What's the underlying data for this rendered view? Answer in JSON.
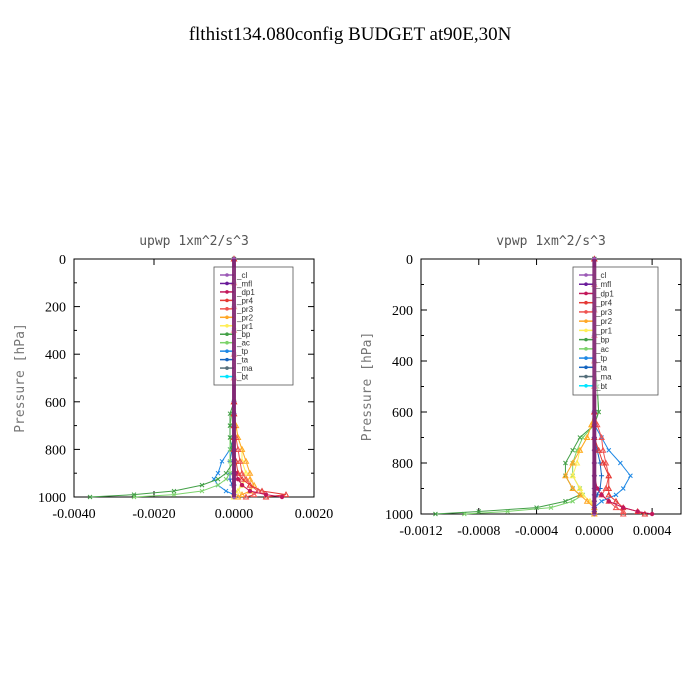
{
  "figure_title": "flthist134.080config  BUDGET at90E,30N",
  "colors": {
    "_cl": "#9b59b6",
    "_mfl": "#6a1b9a",
    "_dp1": "#c2185b",
    "_pr4": "#e53935",
    "_pr3": "#ef5350",
    "_pr2": "#ffa726",
    "_pr1": "#ffee58",
    "_bp": "#43a047",
    "_ac": "#7cd36b",
    "_tp": "#1e88e5",
    "_ta": "#1565c0",
    "_ma": "#546e7a",
    "_bt": "#00e5ff"
  },
  "chart_data": [
    {
      "type": "line",
      "title": "upwp  1xm^2/s^3",
      "ylabel": "Pressure [hPa]",
      "xlabel": "",
      "xlim": [
        -0.004,
        0.002
      ],
      "ylim": [
        1000,
        0
      ],
      "xticks": [
        "-0.0040",
        "-0.0020",
        "0.0000",
        "0.0020"
      ],
      "yticks": [
        "0",
        "200",
        "400",
        "600",
        "800",
        "1000"
      ],
      "legend_position": "top-right",
      "levels": [
        0,
        100,
        200,
        300,
        400,
        500,
        600,
        650,
        700,
        750,
        800,
        850,
        900,
        925,
        950,
        975,
        990,
        1000
      ],
      "series": [
        {
          "name": "_cl",
          "values": [
            0,
            0,
            0,
            0,
            0,
            0,
            0,
            0,
            0,
            0,
            0,
            0,
            0,
            0,
            0,
            0,
            0,
            0
          ]
        },
        {
          "name": "_mfl",
          "values": [
            0,
            0,
            0,
            0,
            0,
            0,
            0,
            0,
            0,
            0,
            0,
            0,
            0,
            0,
            0,
            0,
            0,
            0
          ]
        },
        {
          "name": "_dp1",
          "values": [
            0,
            0,
            0,
            0,
            0,
            0,
            0,
            0,
            0,
            0,
            0,
            0,
            5e-05,
            0.0001,
            0.0002,
            0.0004,
            0.0008,
            0.0012
          ]
        },
        {
          "name": "_pr4",
          "values": [
            0,
            0,
            0,
            0,
            0,
            0,
            0,
            0,
            0,
            0,
            0,
            5e-05,
            0.0001,
            0.0002,
            0.0004,
            0.0007,
            0.0013,
            0.0008
          ]
        },
        {
          "name": "_pr3",
          "values": [
            0,
            0,
            0,
            0,
            0,
            0,
            0,
            0,
            0,
            5e-05,
            0.0001,
            0.00015,
            0.0002,
            0.0003,
            0.0004,
            0.0006,
            0.0005,
            0.0003
          ]
        },
        {
          "name": "_pr2",
          "values": [
            0,
            0,
            0,
            0,
            0,
            0,
            0,
            0,
            5e-05,
            0.0001,
            0.0002,
            0.0003,
            0.0004,
            0.0004,
            0.0005,
            0.0004,
            0.0002,
            0.0001
          ]
        },
        {
          "name": "_pr1",
          "values": [
            0,
            0,
            0,
            0,
            0,
            0,
            0,
            0,
            5e-05,
            0.0001,
            0.0002,
            0.0002,
            0.0003,
            0.0003,
            0.0002,
            0.0001,
            0,
            0
          ]
        },
        {
          "name": "_bp",
          "values": [
            0,
            0,
            0,
            0,
            0,
            0,
            0,
            -0.0001,
            -0.0001,
            -0.0001,
            -5e-05,
            0,
            -0.0002,
            -0.0004,
            -0.0008,
            -0.0015,
            -0.0025,
            -0.0036
          ]
        },
        {
          "name": "_ac",
          "values": [
            0,
            0,
            0,
            0,
            0,
            0,
            0,
            -5e-05,
            -0.0001,
            -0.0001,
            -0.0001,
            -0.0001,
            -0.0001,
            -0.0002,
            -0.0004,
            -0.0008,
            -0.0015,
            -0.0025
          ]
        },
        {
          "name": "_tp",
          "values": [
            0,
            0,
            0,
            0,
            0,
            0,
            0,
            0,
            0,
            0,
            -0.0001,
            -0.0003,
            -0.0004,
            -0.0005,
            -0.0004,
            -0.0002,
            0,
            0
          ]
        },
        {
          "name": "_ta",
          "values": [
            0,
            0,
            0,
            0,
            0,
            0,
            0,
            0,
            0,
            0,
            -5e-05,
            -0.0001,
            -0.0001,
            -0.0001,
            -5e-05,
            0,
            0,
            0
          ]
        },
        {
          "name": "_ma",
          "values": [
            0,
            0,
            0,
            0,
            0,
            0,
            0,
            0,
            0,
            0,
            0,
            0,
            0,
            0,
            0,
            0,
            0,
            0
          ]
        },
        {
          "name": "_bt",
          "values": [
            0,
            0,
            0,
            0,
            0,
            0,
            0,
            0,
            0,
            0,
            0,
            0,
            0,
            0,
            0,
            0,
            0,
            0
          ]
        }
      ]
    },
    {
      "type": "line",
      "title": "vpwp  1xm^2/s^3",
      "ylabel": "Pressure [hPa]",
      "xlabel": "",
      "xlim": [
        -0.0012,
        0.0006
      ],
      "ylim": [
        1000,
        0
      ],
      "xticks": [
        "-0.0012",
        "-0.0008",
        "-0.0004",
        "0.0000",
        "0.0004"
      ],
      "yticks": [
        "0",
        "200",
        "400",
        "600",
        "800",
        "1000"
      ],
      "legend_position": "top-right",
      "levels": [
        0,
        100,
        200,
        300,
        400,
        500,
        600,
        650,
        700,
        750,
        800,
        850,
        900,
        925,
        950,
        975,
        990,
        1000
      ],
      "series": [
        {
          "name": "_cl",
          "values": [
            0,
            0,
            0,
            0,
            0,
            0,
            0,
            0,
            0,
            0,
            0,
            0,
            0,
            0,
            0,
            0,
            0,
            0
          ]
        },
        {
          "name": "_mfl",
          "values": [
            0,
            0,
            0,
            0,
            0,
            0,
            0,
            0,
            0,
            0,
            0,
            0,
            0,
            0,
            0,
            0,
            0,
            0
          ]
        },
        {
          "name": "_dp1",
          "values": [
            0,
            0,
            0,
            0,
            0,
            0,
            0,
            0,
            0,
            0,
            0,
            0,
            2e-05,
            5e-05,
            0.0001,
            0.0002,
            0.0003,
            0.0004
          ]
        },
        {
          "name": "_pr4",
          "values": [
            0,
            0,
            0,
            0,
            0,
            0,
            0,
            0,
            0,
            3e-05,
            6e-05,
            0.0001,
            0.0001,
            0.0001,
            0.00015,
            0.0002,
            0.0003,
            0.00035
          ]
        },
        {
          "name": "_pr3",
          "values": [
            0,
            0,
            0,
            0,
            0,
            0,
            0,
            2e-05,
            5e-05,
            6e-05,
            8e-05,
            0.0001,
            8e-05,
            5e-05,
            0.0001,
            0.00015,
            0.0002,
            0.0002
          ]
        },
        {
          "name": "_pr2",
          "values": [
            0,
            0,
            0,
            0,
            0,
            0,
            0,
            -2e-05,
            -5e-05,
            -0.0001,
            -0.00015,
            -0.0002,
            -0.00015,
            -0.0001,
            -5e-05,
            0,
            0,
            0
          ]
        },
        {
          "name": "_pr1",
          "values": [
            0,
            0,
            0,
            0,
            0,
            0,
            0,
            -2e-05,
            -5e-05,
            -0.0001,
            -0.00012,
            -0.00015,
            -0.0001,
            -8e-05,
            -3e-05,
            0,
            0,
            0
          ]
        },
        {
          "name": "_bp",
          "values": [
            0,
            0,
            0,
            0,
            0,
            2e-05,
            3e-05,
            0,
            -0.0001,
            -0.00015,
            -0.0002,
            -0.0002,
            -0.00015,
            -0.0001,
            -0.0002,
            -0.0004,
            -0.0008,
            -0.0011
          ]
        },
        {
          "name": "_ac",
          "values": [
            0,
            0,
            0,
            0,
            0,
            2e-05,
            3e-05,
            0,
            -8e-05,
            -0.00012,
            -0.00015,
            -0.00015,
            -0.0001,
            -8e-05,
            -0.00015,
            -0.0003,
            -0.0006,
            -0.0009
          ]
        },
        {
          "name": "_tp",
          "values": [
            0,
            0,
            0,
            0,
            0,
            0,
            0,
            0,
            5e-05,
            0.0001,
            0.00018,
            0.00025,
            0.0002,
            0.00015,
            5e-05,
            0,
            0,
            0
          ]
        },
        {
          "name": "_ta",
          "values": [
            0,
            0,
            0,
            0,
            0,
            0,
            0,
            0,
            0,
            2e-05,
            4e-05,
            5e-05,
            4e-05,
            2e-05,
            0,
            0,
            0,
            0
          ]
        },
        {
          "name": "_ma",
          "values": [
            0,
            0,
            0,
            0,
            0,
            0,
            0,
            0,
            0,
            0,
            0,
            0,
            0,
            0,
            0,
            0,
            0,
            0
          ]
        },
        {
          "name": "_bt",
          "values": [
            0,
            0,
            0,
            0,
            0,
            0,
            0,
            0,
            0,
            0,
            0,
            0,
            0,
            0,
            0,
            0,
            0,
            0
          ]
        }
      ]
    }
  ]
}
